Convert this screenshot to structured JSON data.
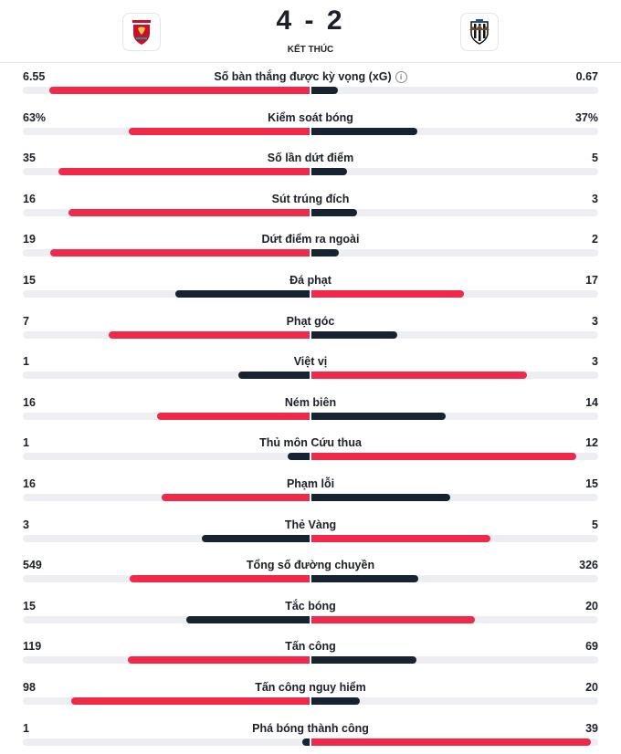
{
  "match": {
    "score": "4 - 2",
    "status": "KẾT THÚC"
  },
  "teams": {
    "home": {
      "logo_icon": "liverpool-crest-icon"
    },
    "away": {
      "logo_icon": "newcastle-crest-icon"
    }
  },
  "colors": {
    "leader": "#f0284a",
    "trailer": "#172330",
    "track": "#eceef1"
  },
  "stats": [
    {
      "label": "Số bàn thắng được kỳ vọng (xG)",
      "home": "6.55",
      "away": "0.67",
      "home_value": 6.55,
      "away_value": 0.67,
      "info": true
    },
    {
      "label": "Kiểm soát bóng",
      "home": "63%",
      "away": "37%",
      "home_value": 63,
      "away_value": 37
    },
    {
      "label": "Số lần dứt điểm",
      "home": "35",
      "away": "5",
      "home_value": 35,
      "away_value": 5
    },
    {
      "label": "Sút trúng đích",
      "home": "16",
      "away": "3",
      "home_value": 16,
      "away_value": 3
    },
    {
      "label": "Dứt điểm ra ngoài",
      "home": "19",
      "away": "2",
      "home_value": 19,
      "away_value": 2
    },
    {
      "label": "Đá phạt",
      "home": "15",
      "away": "17",
      "home_value": 15,
      "away_value": 17
    },
    {
      "label": "Phạt góc",
      "home": "7",
      "away": "3",
      "home_value": 7,
      "away_value": 3
    },
    {
      "label": "Việt vị",
      "home": "1",
      "away": "3",
      "home_value": 1,
      "away_value": 3
    },
    {
      "label": "Ném biên",
      "home": "16",
      "away": "14",
      "home_value": 16,
      "away_value": 14
    },
    {
      "label": "Thủ môn Cứu thua",
      "home": "1",
      "away": "12",
      "home_value": 1,
      "away_value": 12
    },
    {
      "label": "Phạm lỗi",
      "home": "16",
      "away": "15",
      "home_value": 16,
      "away_value": 15
    },
    {
      "label": "Thẻ Vàng",
      "home": "3",
      "away": "5",
      "home_value": 3,
      "away_value": 5
    },
    {
      "label": "Tổng số đường chuyền",
      "home": "549",
      "away": "326",
      "home_value": 549,
      "away_value": 326
    },
    {
      "label": "Tắc bóng",
      "home": "15",
      "away": "20",
      "home_value": 15,
      "away_value": 20
    },
    {
      "label": "Tấn công",
      "home": "119",
      "away": "69",
      "home_value": 119,
      "away_value": 69
    },
    {
      "label": "Tấn công nguy hiểm",
      "home": "98",
      "away": "20",
      "home_value": 98,
      "away_value": 20
    },
    {
      "label": "Phá bóng thành công",
      "home": "1",
      "away": "39",
      "home_value": 1,
      "away_value": 39
    }
  ]
}
